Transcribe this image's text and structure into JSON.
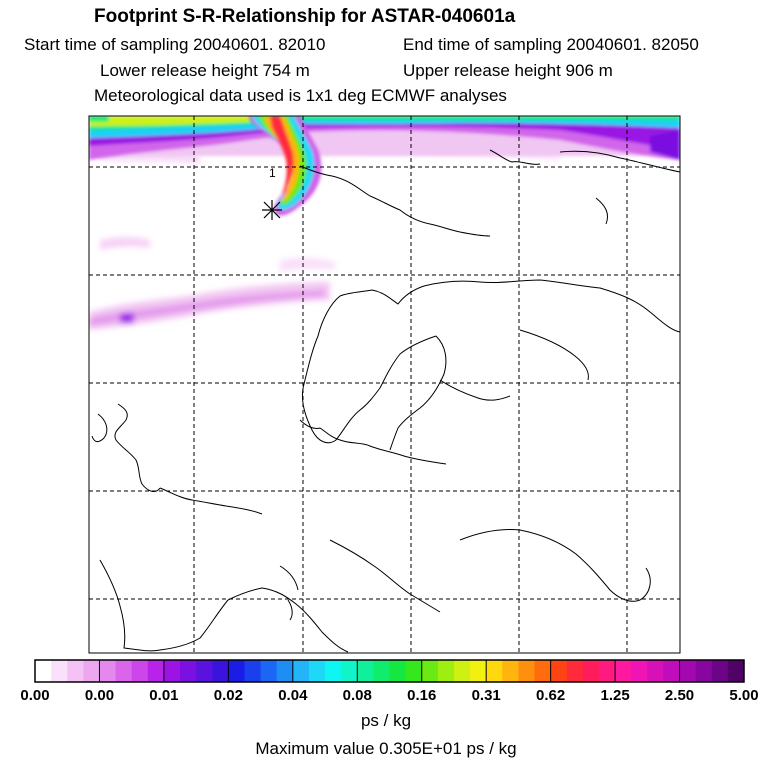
{
  "header": {
    "title": "Footprint S-R-Relationship for ASTAR-040601a",
    "start_time": "Start time of sampling 20040601. 82010",
    "end_time": "End time of sampling 20040601. 82050",
    "lower_height": "Lower release height  754 m",
    "upper_height": "Upper release height  906 m",
    "met_data": "Meteorological data used is 1x1 deg ECMWF analyses"
  },
  "colorbar": {
    "ticks": [
      "0.00",
      "0.00",
      "0.01",
      "0.02",
      "0.04",
      "0.08",
      "0.16",
      "0.31",
      "0.62",
      "1.25",
      "2.50",
      "5.00"
    ],
    "colors": [
      "#ffffff",
      "#fbe0fb",
      "#f4c2f4",
      "#eda7ee",
      "#e388ec",
      "#d966ea",
      "#cc46ea",
      "#b922e8",
      "#9c14e4",
      "#7b10e0",
      "#5a12de",
      "#3a14dc",
      "#1b1ce6",
      "#1a40ee",
      "#1b66f2",
      "#1e8ef5",
      "#24b4f8",
      "#1ed8f8",
      "#0ff5f2",
      "#10f5c8",
      "#10f09a",
      "#10ec6c",
      "#14e840",
      "#34e81c",
      "#6aea12",
      "#9eee12",
      "#cef012",
      "#f2f010",
      "#ffd80e",
      "#ffb40e",
      "#ff900e",
      "#ff6c0e",
      "#ff4414",
      "#ff2a3a",
      "#ff1c5c",
      "#ff1a80",
      "#ff18a0",
      "#f014b4",
      "#d810b8",
      "#c00cba",
      "#a408b0",
      "#8806a0",
      "#6c0486",
      "#500266"
    ],
    "units": "ps / kg",
    "max_value": "Maximum value  0.305E+01 ps / kg"
  },
  "map": {
    "receptor_marker": "1"
  }
}
